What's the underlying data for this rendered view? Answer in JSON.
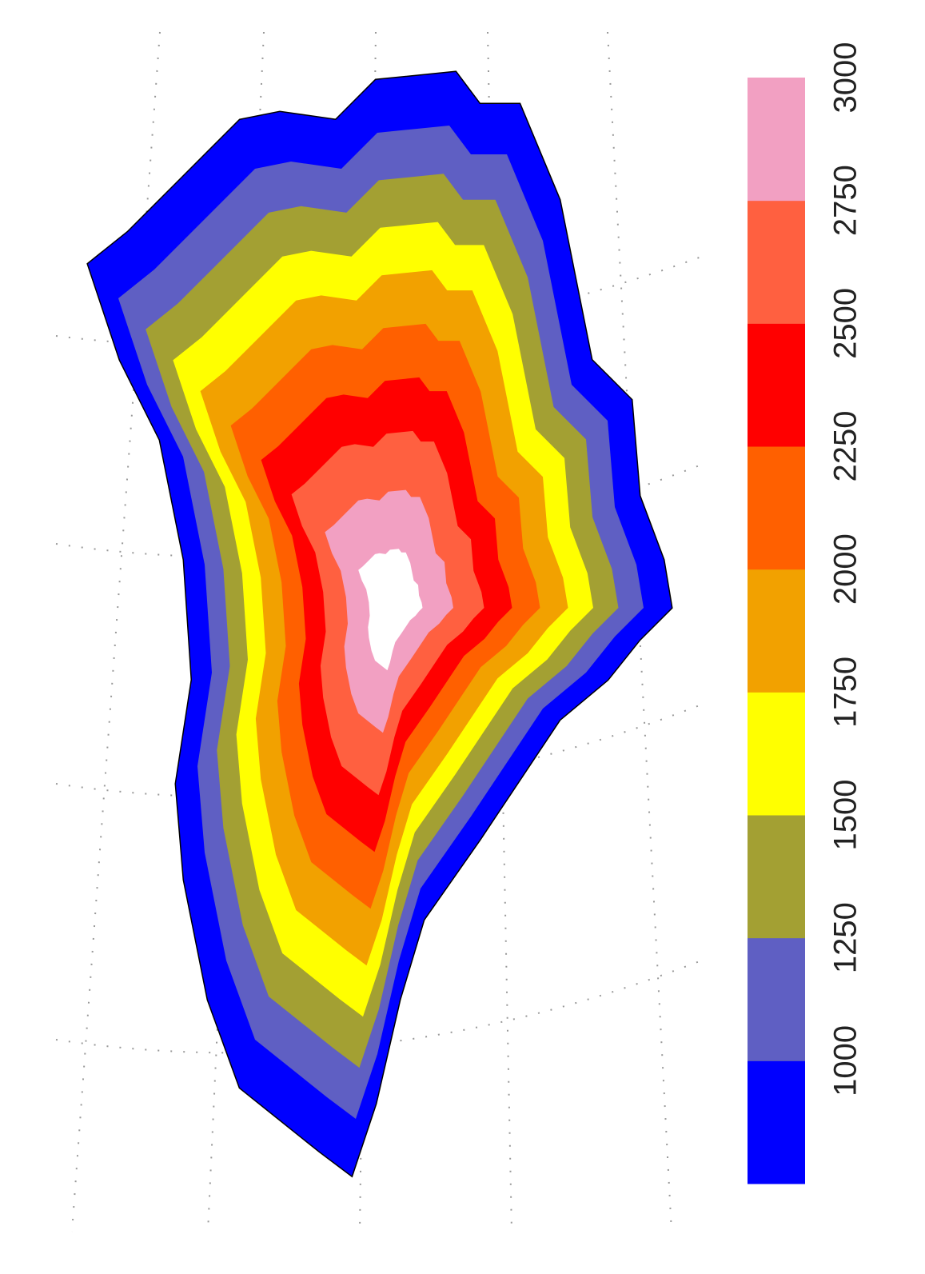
{
  "legend": {
    "ticks": [
      1000,
      1250,
      1500,
      1750,
      2000,
      2250,
      2500,
      2750,
      3000
    ],
    "colors": [
      "#0000ff",
      "#5f5fc3",
      "#a3a033",
      "#ffff00",
      "#f2a100",
      "#ff6000",
      "#ff0000",
      "#ff6040",
      "#f2a0c2"
    ]
  }
}
